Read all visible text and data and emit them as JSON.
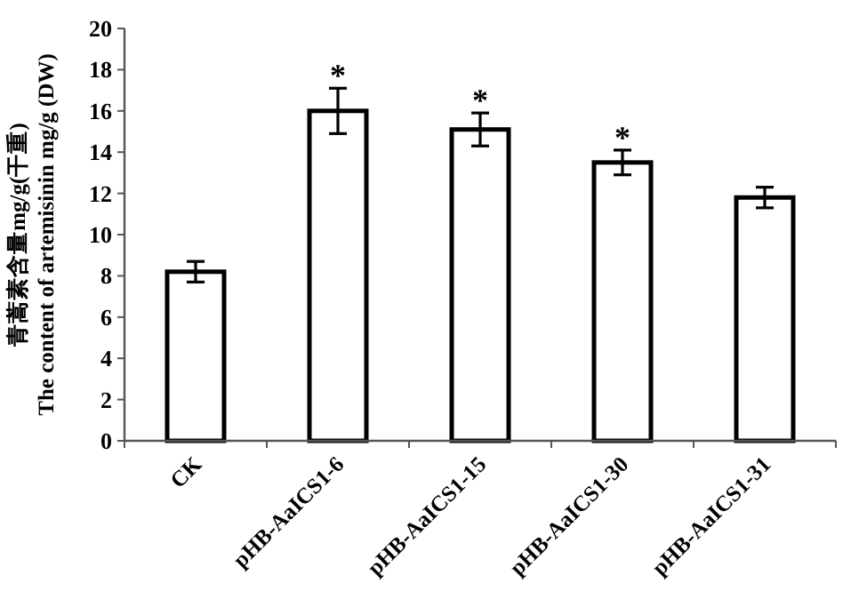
{
  "chart_data": {
    "type": "bar",
    "ylabel": "青蒿素含量mg/g(干重)\nThe content of artemisinin mg/g (DW)",
    "categories": [
      "CK",
      "pHB-AaICS1-6",
      "pHB-AaICS1-15",
      "pHB-AaICS1-30",
      "pHB-AaICS1-31"
    ],
    "values": [
      8.2,
      16.0,
      15.1,
      13.5,
      11.8
    ],
    "errors": [
      0.5,
      1.1,
      0.8,
      0.6,
      0.5
    ],
    "color": "#ffffff",
    "ylim": [
      0,
      20
    ],
    "yticks": [
      0,
      2,
      4,
      6,
      8,
      10,
      12,
      14,
      16,
      18,
      20
    ],
    "grid": false,
    "annotations": [
      {
        "text": "*",
        "x": "pHB-AaICS1-6",
        "y": 16.0
      },
      {
        "text": "*",
        "x": "pHB-AaICS1-15",
        "y": 15.1
      },
      {
        "text": "*",
        "x": "pHB-AaICS1-30",
        "y": 13.5
      }
    ]
  }
}
